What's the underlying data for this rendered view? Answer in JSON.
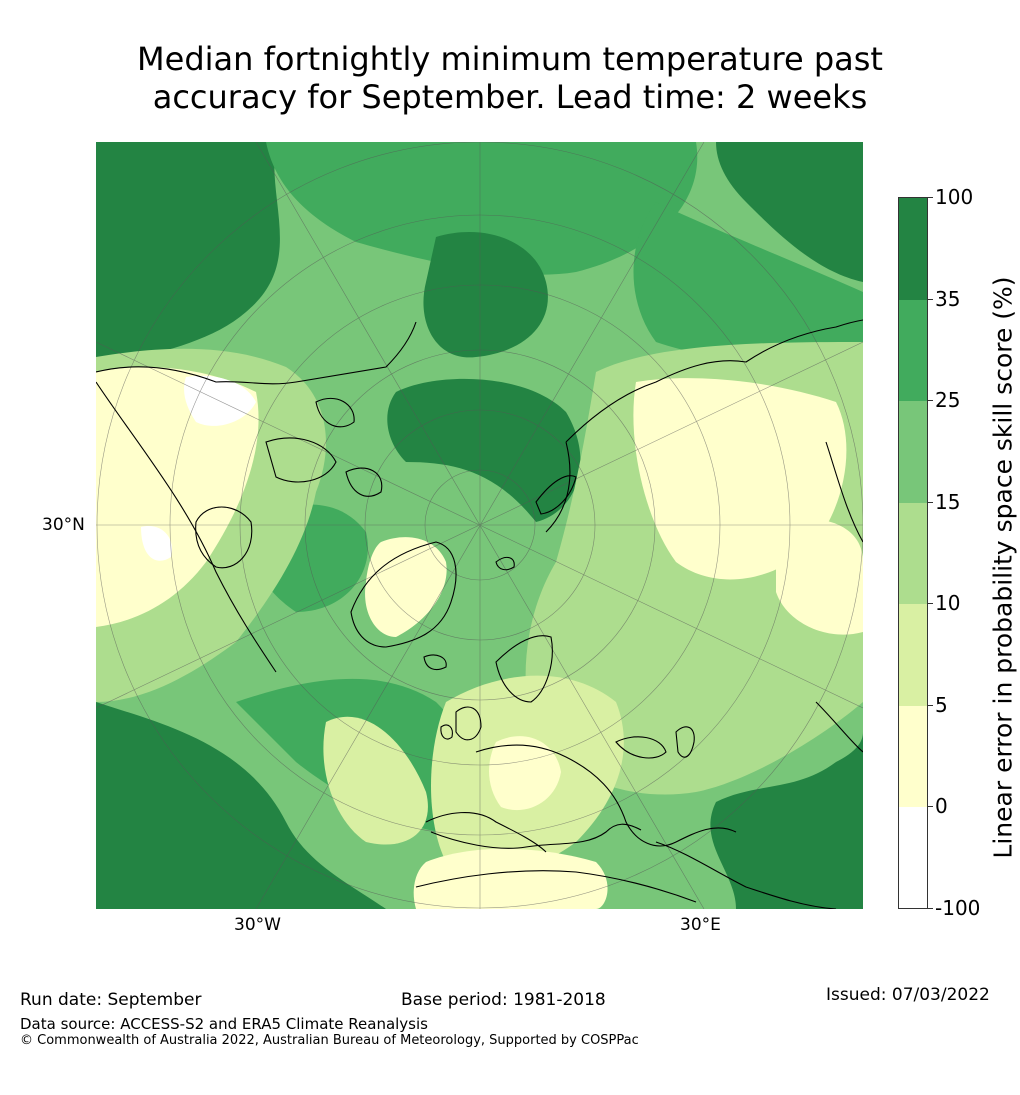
{
  "title": {
    "line1": "Median fortnightly minimum temperature past",
    "line2": "accuracy for September. Lead time: 2 weeks"
  },
  "map": {
    "projection": "north-polar-stereographic",
    "graticule_labels": {
      "lat_30n": "30°N",
      "lon_30w": "30°W",
      "lon_30e": "30°E"
    }
  },
  "colorbar": {
    "label": "Linear error in probability space skill score (%)",
    "ticks": [
      "100",
      "35",
      "25",
      "15",
      "10",
      "5",
      "0",
      "-100"
    ],
    "bins": [
      {
        "range": "35 to 100",
        "color": "#238443"
      },
      {
        "range": "25 to 35",
        "color": "#41ab5d"
      },
      {
        "range": "15 to 25",
        "color": "#78c679"
      },
      {
        "range": "10 to 15",
        "color": "#addd8e"
      },
      {
        "range": "5 to 10",
        "color": "#d9f0a3"
      },
      {
        "range": "0 to 5",
        "color": "#ffffcc"
      },
      {
        "range": "-100 to 0",
        "color": "#ffffff"
      }
    ]
  },
  "footer": {
    "run_date": "Run date: September",
    "base_period": "Base period: 1981-2018",
    "issued": "Issued: 07/03/2022",
    "data_source": "Data source: ACCESS-S2 and ERA5 Climate Reanalysis",
    "copyright": "© Commonwealth of Australia 2022, Australian Bureau of Meteorology, Supported by COSPPac"
  }
}
